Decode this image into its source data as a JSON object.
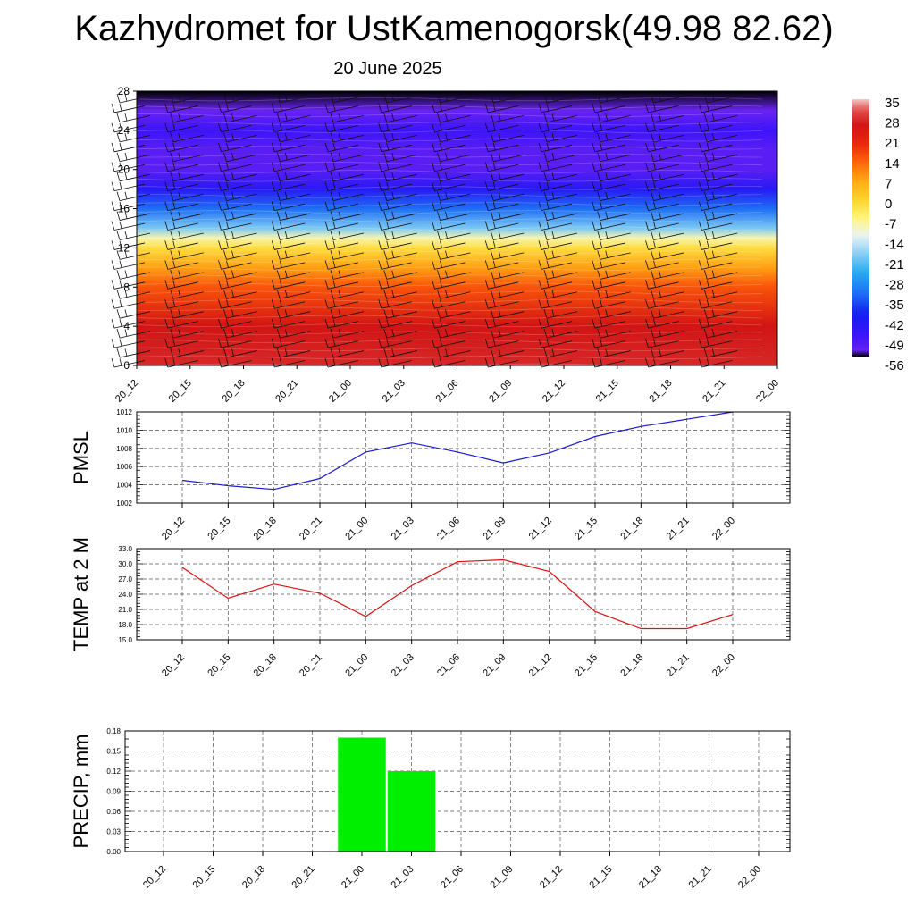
{
  "title": "Kazhydromet for UstKamenogorsk(49.98 82.62)",
  "subtitle": "20 June 2025",
  "colors": {
    "pmsl_line": "#1a1acc",
    "temp_line": "#dd1111",
    "precip_bar": "#00ee00",
    "grid": "#555555"
  },
  "chart_data": [
    {
      "type": "heatmap",
      "title": "",
      "x": [
        "20_12",
        "20_15",
        "20_18",
        "20_21",
        "21_00",
        "21_03",
        "21_06",
        "21_09",
        "21_12",
        "21_15",
        "21_18",
        "21_21",
        "22_00"
      ],
      "y_ticks": [
        0,
        4,
        8,
        12,
        16,
        20,
        24,
        28
      ],
      "ylim": [
        0,
        28
      ],
      "colorbar_labels": [
        "35",
        "28",
        "21",
        "14",
        "7",
        "0",
        "-7",
        "-14",
        "-21",
        "-28",
        "-35",
        "-42",
        "-49",
        "-56"
      ],
      "colorbar_range": [
        -60,
        38
      ],
      "temperature_profile": [
        {
          "y": 0,
          "value": 30
        },
        {
          "y": 4,
          "value": 28
        },
        {
          "y": 8,
          "value": 16
        },
        {
          "y": 10,
          "value": 8
        },
        {
          "y": 12,
          "value": -2
        },
        {
          "y": 13,
          "value": -10
        },
        {
          "y": 14,
          "value": -22
        },
        {
          "y": 16,
          "value": -36
        },
        {
          "y": 18,
          "value": -48
        },
        {
          "y": 20,
          "value": -56
        },
        {
          "y": 22,
          "value": -56
        },
        {
          "y": 24,
          "value": -52
        },
        {
          "y": 26,
          "value": -58
        },
        {
          "y": 28,
          "value": -60
        }
      ],
      "wind_barbs": true
    },
    {
      "type": "line",
      "ylabel": "PMSL",
      "categories": [
        "20_12",
        "20_15",
        "20_18",
        "20_21",
        "21_00",
        "21_03",
        "21_06",
        "21_09",
        "21_12",
        "21_15",
        "21_18",
        "21_21",
        "22_00"
      ],
      "y_ticks": [
        "1002",
        "1004",
        "1006",
        "1008",
        "1010",
        "1012"
      ],
      "ylim": [
        1002,
        1012
      ],
      "series": [
        {
          "values": [
            1004.5,
            1003.9,
            1003.5,
            1004.7,
            1007.6,
            1008.6,
            1007.6,
            1006.4,
            1007.5,
            1009.3,
            1010.4,
            1011.2,
            1012.0
          ]
        }
      ],
      "grid": true
    },
    {
      "type": "line",
      "ylabel": "TEMP at 2 M",
      "categories": [
        "20_12",
        "20_15",
        "20_18",
        "20_21",
        "21_00",
        "21_03",
        "21_06",
        "21_09",
        "21_12",
        "21_15",
        "21_18",
        "21_21",
        "22_00"
      ],
      "y_ticks": [
        "15.0",
        "18.0",
        "21.0",
        "24.0",
        "27.0",
        "30.0",
        "33.0"
      ],
      "ylim": [
        15,
        33
      ],
      "series": [
        {
          "values": [
            29.3,
            23.2,
            26.0,
            24.2,
            19.6,
            25.7,
            30.4,
            30.8,
            28.5,
            20.6,
            17.2,
            17.2,
            20.0
          ]
        }
      ],
      "grid": true
    },
    {
      "type": "bar",
      "ylabel": "PRECIP, mm",
      "categories": [
        "20_12",
        "20_15",
        "20_18",
        "20_21",
        "21_00",
        "21_03",
        "21_06",
        "21_09",
        "21_12",
        "21_15",
        "21_18",
        "21_21",
        "22_00"
      ],
      "y_ticks": [
        "0.00",
        "0.03",
        "0.06",
        "0.09",
        "0.12",
        "0.15",
        "0.18"
      ],
      "ylim": [
        0,
        0.18
      ],
      "values": [
        0,
        0,
        0,
        0,
        0.17,
        0.12,
        0,
        0,
        0,
        0,
        0,
        0,
        0
      ],
      "grid": true
    }
  ]
}
